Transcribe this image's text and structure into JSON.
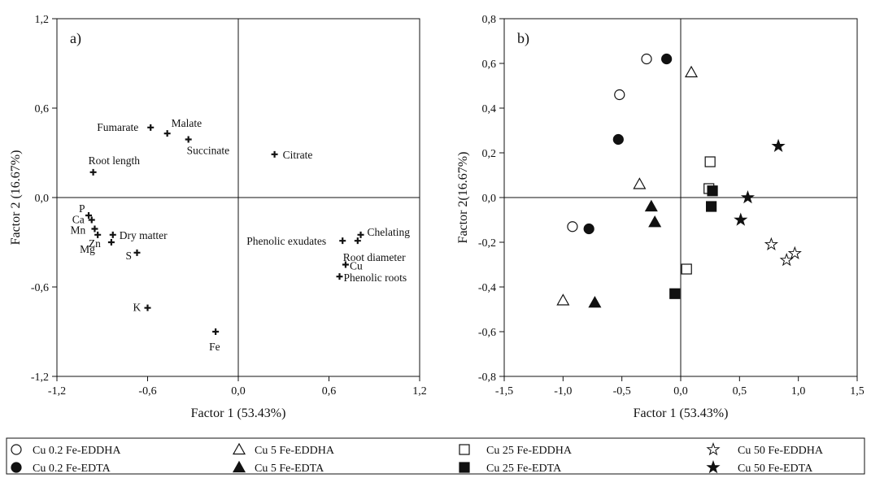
{
  "chart_data": [
    {
      "type": "scatter",
      "panel_label": "a)",
      "xlabel": "Factor 1 (53.43%)",
      "ylabel": "Factor 2 (16.67%)",
      "xlim": [
        -1.2,
        1.2
      ],
      "ylim": [
        -1.2,
        1.2
      ],
      "xticks": [
        "-1,2",
        "-0,6",
        "0,0",
        "0,6",
        "1,2"
      ],
      "yticks": [
        "-1,2",
        "-0,6",
        "0,0",
        "0,6",
        "1,2"
      ],
      "marker": "cross",
      "points": [
        {
          "label": "Fumarate",
          "x": -0.58,
          "y": 0.47
        },
        {
          "label": "Malate",
          "x": -0.47,
          "y": 0.43
        },
        {
          "label": "Succinate",
          "x": -0.33,
          "y": 0.39
        },
        {
          "label": "Citrate",
          "x": 0.24,
          "y": 0.29
        },
        {
          "label": "Root length",
          "x": -0.96,
          "y": 0.17
        },
        {
          "label": "P",
          "x": -0.99,
          "y": -0.12
        },
        {
          "label": "Ca",
          "x": -0.97,
          "y": -0.15
        },
        {
          "label": "Mn",
          "x": -0.95,
          "y": -0.21
        },
        {
          "label": "Zn",
          "x": -0.84,
          "y": -0.3
        },
        {
          "label": "Dry matter",
          "x": -0.83,
          "y": -0.25
        },
        {
          "label": "Mg",
          "x": -0.93,
          "y": -0.25
        },
        {
          "label": "S",
          "x": -0.67,
          "y": -0.37
        },
        {
          "label": "K",
          "x": -0.6,
          "y": -0.74
        },
        {
          "label": "Fe",
          "x": -0.15,
          "y": -0.9
        },
        {
          "label": "Phenolic exudates",
          "x": 0.69,
          "y": -0.29
        },
        {
          "label": "Chelating",
          "x": 0.81,
          "y": -0.25
        },
        {
          "label": "Root diameter",
          "x": 0.79,
          "y": -0.29
        },
        {
          "label": "Cu",
          "x": 0.71,
          "y": -0.45
        },
        {
          "label": "Phenolic roots",
          "x": 0.67,
          "y": -0.53
        }
      ]
    },
    {
      "type": "scatter",
      "panel_label": "b)",
      "xlabel": "Factor 1 (53.43%)",
      "ylabel": "Factor 2(16.67%)",
      "xlim": [
        -1.5,
        1.5
      ],
      "ylim": [
        -0.8,
        0.8
      ],
      "xticks": [
        "-1,5",
        "-1,0",
        "-0,5",
        "0,0",
        "0,5",
        "1,0",
        "1,5"
      ],
      "yticks": [
        "-0,8",
        "-0,6",
        "-0,4",
        "-0,2",
        "0,0",
        "0,2",
        "0,4",
        "0,6",
        "0,8"
      ],
      "series": [
        {
          "name": "Cu 0.2 Fe-EDDHA",
          "marker": "circle-open",
          "points": [
            [
              -0.29,
              0.62
            ],
            [
              -0.52,
              0.46
            ],
            [
              -0.92,
              -0.13
            ]
          ]
        },
        {
          "name": "Cu 0.2 Fe-EDTA",
          "marker": "circle-filled",
          "points": [
            [
              -0.12,
              0.62
            ],
            [
              -0.53,
              0.26
            ],
            [
              -0.78,
              -0.14
            ]
          ]
        },
        {
          "name": "Cu 5 Fe-EDDHA",
          "marker": "triangle-open",
          "points": [
            [
              0.09,
              0.56
            ],
            [
              -0.35,
              0.06
            ],
            [
              -1.0,
              -0.46
            ]
          ]
        },
        {
          "name": "Cu 5 Fe-EDTA",
          "marker": "triangle-filled",
          "points": [
            [
              -0.25,
              -0.04
            ],
            [
              -0.22,
              -0.11
            ],
            [
              -0.73,
              -0.47
            ]
          ]
        },
        {
          "name": "Cu 25 Fe-EDDHA",
          "marker": "square-open",
          "points": [
            [
              0.25,
              0.16
            ],
            [
              0.24,
              0.04
            ],
            [
              0.05,
              -0.32
            ]
          ]
        },
        {
          "name": "Cu 25 Fe-EDTA",
          "marker": "square-filled",
          "points": [
            [
              0.27,
              0.03
            ],
            [
              0.26,
              -0.04
            ],
            [
              -0.05,
              -0.43
            ]
          ]
        },
        {
          "name": "Cu 50 Fe-EDDHA",
          "marker": "star-open",
          "points": [
            [
              0.77,
              -0.21
            ],
            [
              0.9,
              -0.28
            ],
            [
              0.97,
              -0.25
            ]
          ]
        },
        {
          "name": "Cu 50 Fe-EDTA",
          "marker": "star-filled",
          "points": [
            [
              0.83,
              0.23
            ],
            [
              0.57,
              0.0
            ],
            [
              0.51,
              -0.1
            ]
          ]
        }
      ]
    }
  ]
}
